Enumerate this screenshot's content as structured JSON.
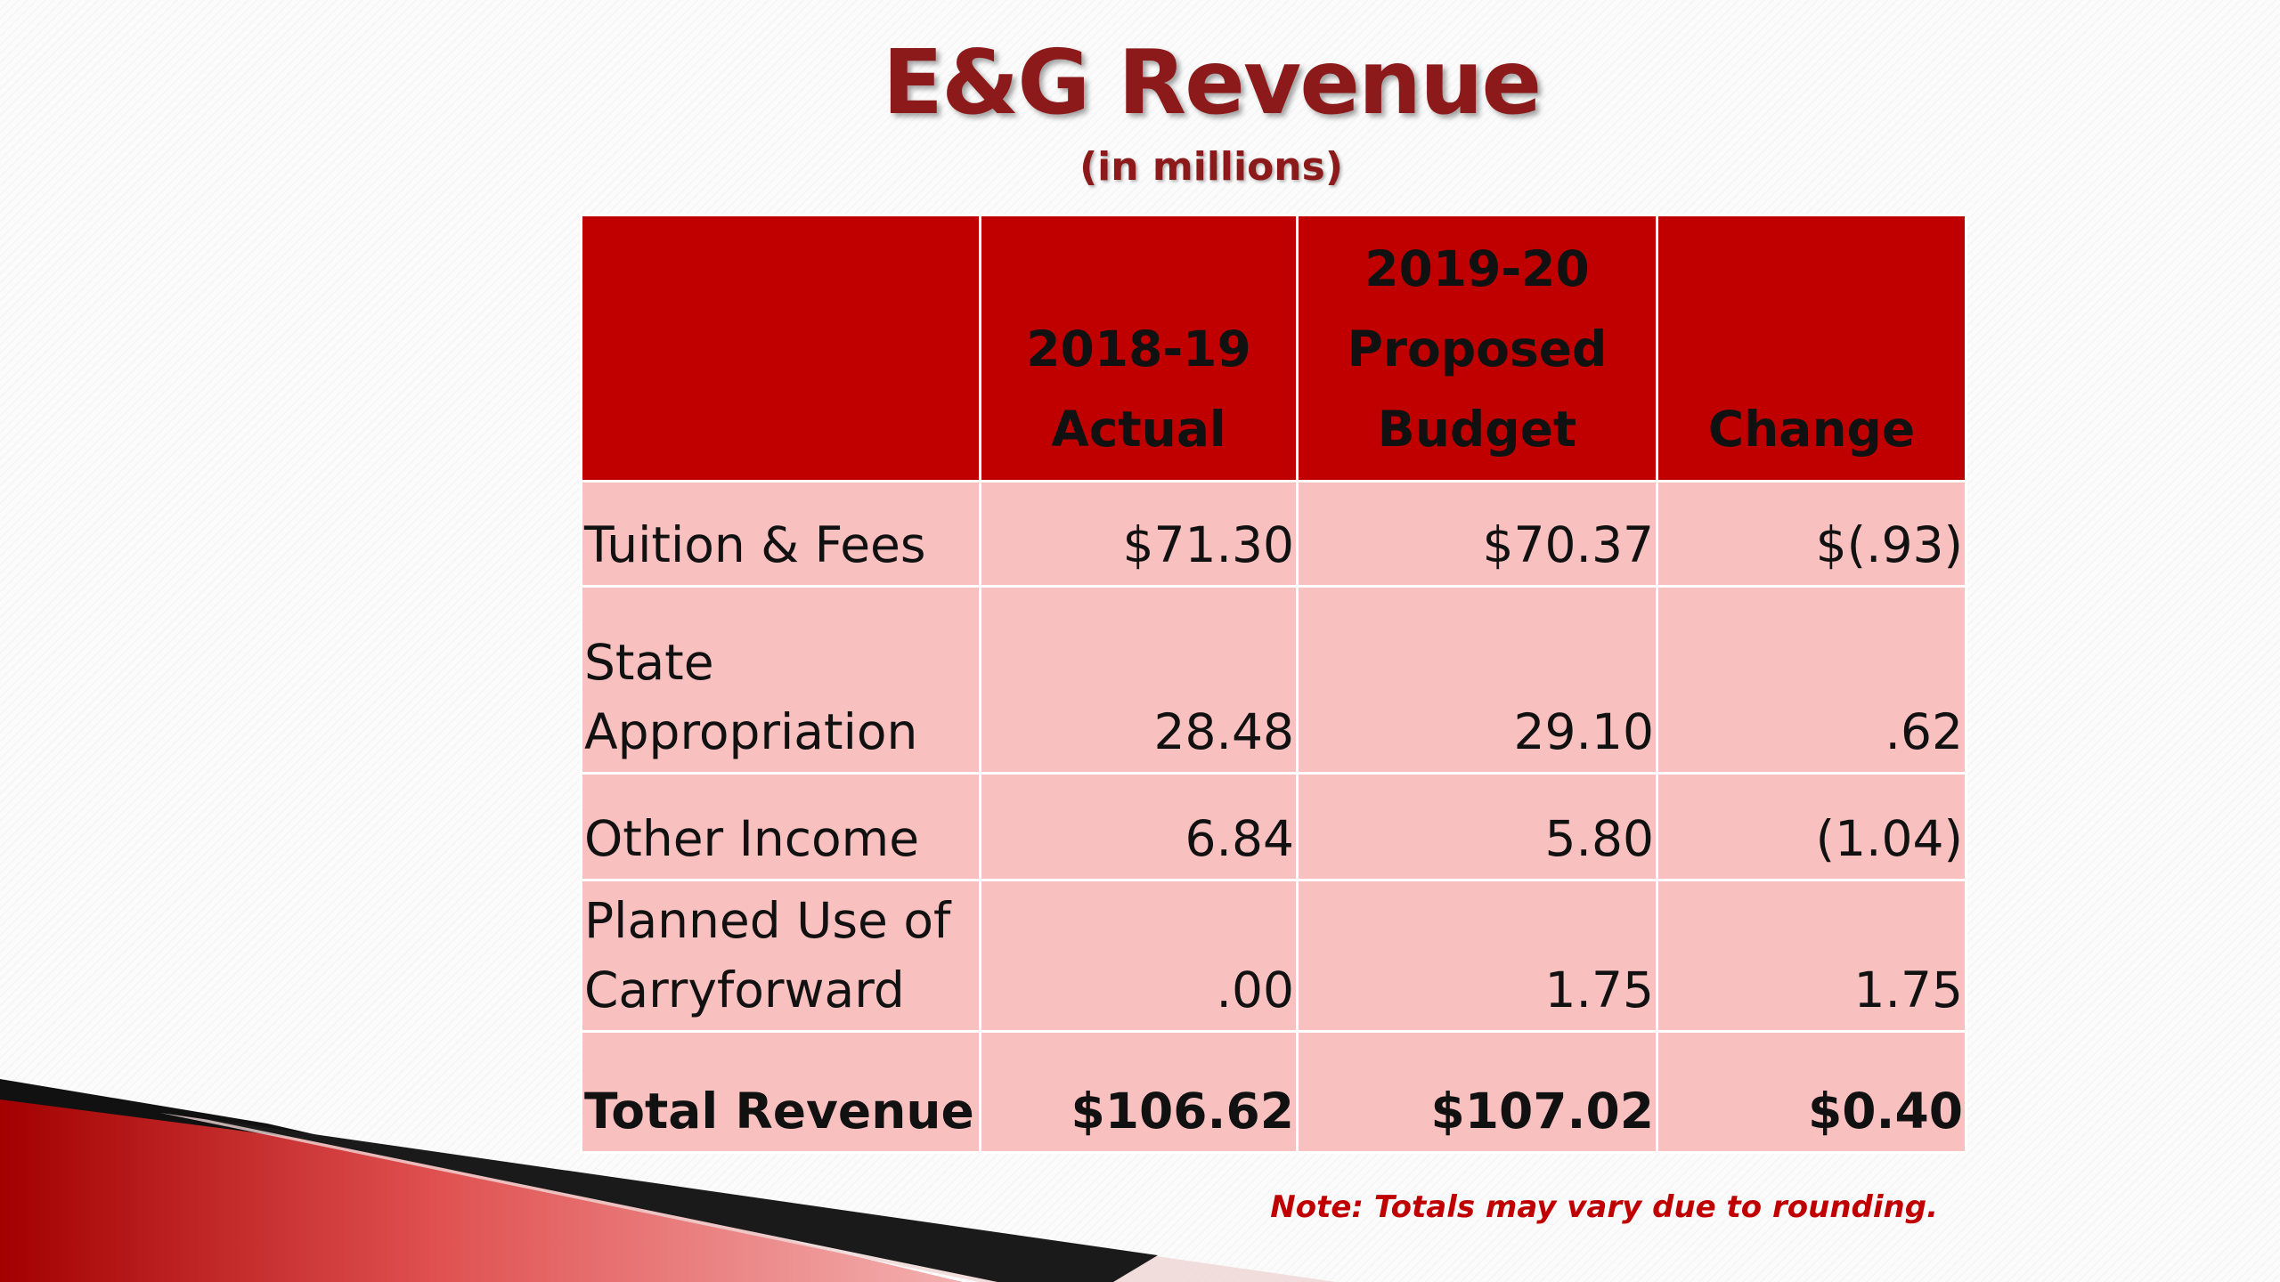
{
  "slide": {
    "title": "E&G Revenue",
    "subtitle": "(in millions)",
    "note": "Note: Totals may vary due to rounding.",
    "accent_color": "#c00000",
    "row_fill_color": "#f9c0c0",
    "title_color": "#8c1a1a"
  },
  "table": {
    "headers": [
      "",
      "2018-19 Actual",
      "2019-20 Proposed Budget",
      "Change"
    ],
    "rows": [
      [
        "Tuition & Fees",
        "$71.30",
        "$70.37",
        "$(.93)"
      ],
      [
        "State Appropriation",
        "28.48",
        "29.10",
        ".62"
      ],
      [
        "Other Income",
        "6.84",
        "5.80",
        "(1.04)"
      ],
      [
        "Planned Use of Carryforward",
        ".00",
        "1.75",
        "1.75"
      ]
    ],
    "total": [
      "Total Revenue",
      "$106.62",
      "$107.02",
      "$0.40"
    ]
  }
}
